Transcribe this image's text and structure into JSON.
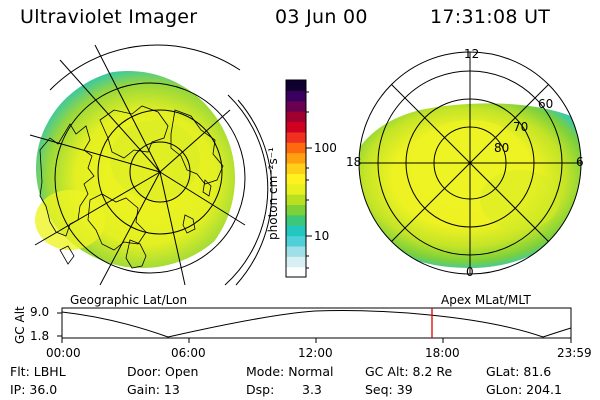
{
  "header": {
    "instrument": "Ultraviolet Imager",
    "date": "03 Jun 00",
    "time": "17:31:08 UT"
  },
  "colorbar": {
    "unit_label": "photon cm⁻²s⁻¹",
    "tick_100": "100",
    "tick_10": "10",
    "colors": [
      "#ffffff",
      "#d8f0f4",
      "#9fe0e8",
      "#4fd0d8",
      "#22c8c0",
      "#3cc87a",
      "#7cd038",
      "#b8e020",
      "#e8f020",
      "#fff21e",
      "#ffd018",
      "#ffa010",
      "#ff6a10",
      "#f03020",
      "#d00020",
      "#a00030",
      "#6a0050",
      "#3a0060",
      "#100030"
    ]
  },
  "left_panel": {
    "caption": "Geographic Lat/Lon"
  },
  "right_panel": {
    "caption": "Apex MLat/MLT",
    "mlt_labels": {
      "top": "12",
      "bottom": "0",
      "left": "18",
      "right": "6"
    },
    "lat_labels": [
      "60",
      "70",
      "80"
    ]
  },
  "altitude_plot": {
    "axis_label": "GC Alt",
    "y_max": "9.0",
    "y_min": "1.8",
    "time_ticks": [
      "00:00",
      "06:00",
      "12:00",
      "18:00",
      "23:59"
    ],
    "current_time_color": "#e00000"
  },
  "status": {
    "filter": "Flt: LBHL",
    "door": "Door: Open",
    "mode": "Mode: Normal",
    "gc_alt": "GC Alt: 8.2 Re",
    "glat": "GLat:  81.6",
    "ip": "IP: 36.0",
    "gain": "Gain: 13",
    "dsp_label": "Dsp:",
    "dsp_value": "3.3",
    "seq": "Seq: 39",
    "glon": "GLon: 204.1"
  }
}
